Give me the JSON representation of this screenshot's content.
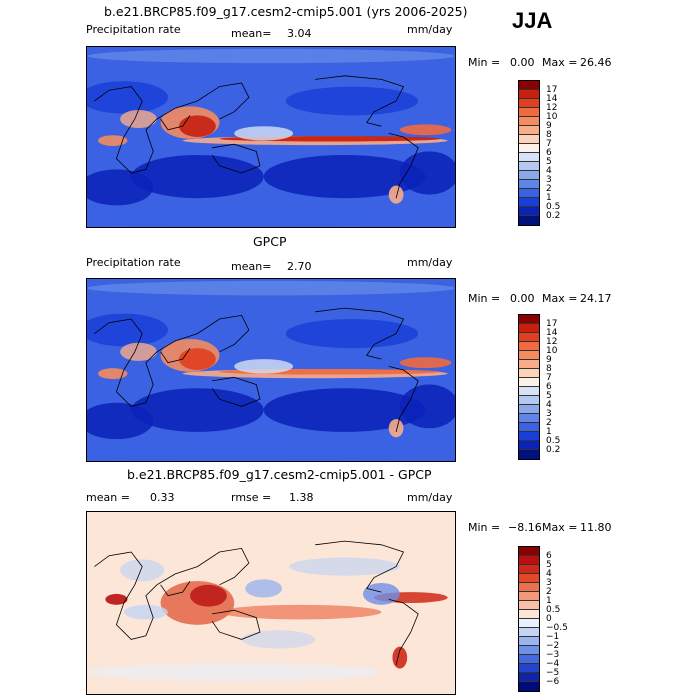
{
  "season": "JJA",
  "chart_data": [
    {
      "type": "heatmap",
      "title": "b.e21.BRCP85.f09_g17.cesm2-cmip5.001 (yrs 2006-2025)",
      "left_label": "Precipitation rate",
      "mean_label": "mean=",
      "mean_value": "3.04",
      "units": "mm/day",
      "min_label": "Min =",
      "min_value": "0.00",
      "max_label": "Max =",
      "max_value": "26.46",
      "levels": [
        "17",
        "14",
        "12",
        "10",
        "9",
        "8",
        "7",
        "6",
        "5",
        "4",
        "3",
        "2",
        "1",
        "0.5",
        "0.2"
      ],
      "colors": [
        "#8b0000",
        "#c8200f",
        "#e0401f",
        "#ef6a40",
        "#f48c60",
        "#f8ad88",
        "#fcd2b8",
        "#fbf1e8",
        "#d6e2f5",
        "#b4c8f0",
        "#8aa9ea",
        "#5f86e6",
        "#3a62e3",
        "#1a3fd8",
        "#0a22b8",
        "#00127c"
      ]
    },
    {
      "type": "heatmap",
      "title": "GPCP",
      "left_label": "Precipitation rate",
      "mean_label": "mean=",
      "mean_value": "2.70",
      "units": "mm/day",
      "min_label": "Min =",
      "min_value": "0.00",
      "max_label": "Max =",
      "max_value": "24.17",
      "levels": [
        "17",
        "14",
        "12",
        "10",
        "9",
        "8",
        "7",
        "6",
        "5",
        "4",
        "3",
        "2",
        "1",
        "0.5",
        "0.2"
      ],
      "colors": [
        "#8b0000",
        "#c8200f",
        "#e0401f",
        "#ef6a40",
        "#f48c60",
        "#f8ad88",
        "#fcd2b8",
        "#fbf1e8",
        "#d6e2f5",
        "#b4c8f0",
        "#8aa9ea",
        "#5f86e6",
        "#3a62e3",
        "#1a3fd8",
        "#0a22b8",
        "#00127c"
      ]
    },
    {
      "type": "heatmap",
      "title": "b.e21.BRCP85.f09_g17.cesm2-cmip5.001 - GPCP",
      "mean_label": "mean =",
      "mean_value": "0.33",
      "rmse_label": "rmse =",
      "rmse_value": "1.38",
      "units": "mm/day",
      "min_label": "Min =",
      "min_value": "−8.16",
      "max_label": "Max =",
      "max_value": "11.80",
      "levels": [
        "6",
        "5",
        "4",
        "3",
        "2",
        "1",
        "0.5",
        "0",
        "−0.5",
        "−1",
        "−2",
        "−3",
        "−4",
        "−5",
        "−6"
      ],
      "colors": [
        "#8b0000",
        "#b81010",
        "#d02818",
        "#e04828",
        "#ec7050",
        "#f49878",
        "#f8c0a8",
        "#fce6d8",
        "#e8f0fc",
        "#c4d4f4",
        "#9ab4ee",
        "#6e90e6",
        "#4468de",
        "#2444cc",
        "#1024a8",
        "#000a78"
      ]
    }
  ]
}
